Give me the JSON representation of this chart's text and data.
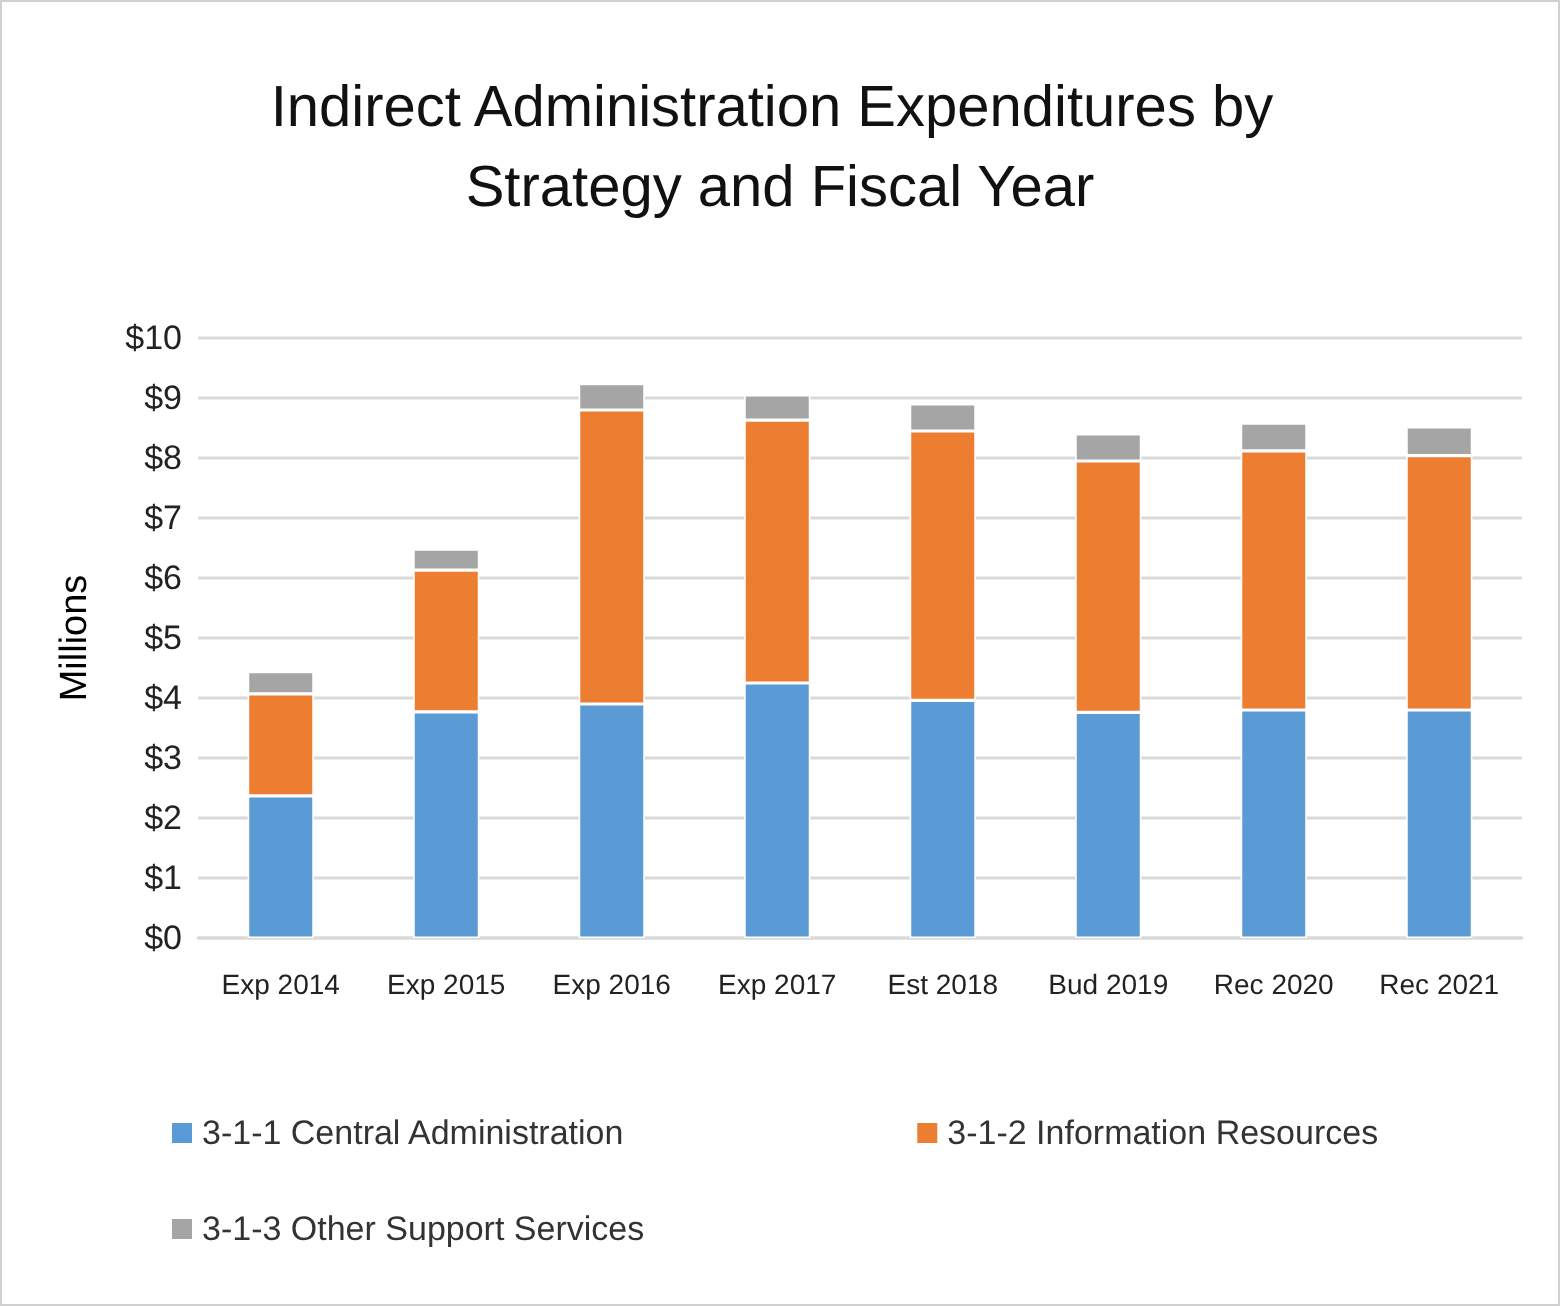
{
  "chart_data": {
    "type": "bar",
    "title": "Indirect Administration Expenditures by Strategy and Fiscal Year",
    "ylabel": "Millions",
    "categories": [
      "Exp 2014",
      "Exp 2015",
      "Exp 2016",
      "Exp 2017",
      "Est 2018",
      "Bud 2019",
      "Rec 2020",
      "Rec 2021"
    ],
    "series": [
      {
        "name": "3-1-1 Central Administration",
        "color": "#5b9bd5",
        "values": [
          2.37,
          3.77,
          3.9,
          4.25,
          3.96,
          3.76,
          3.8,
          3.8
        ]
      },
      {
        "name": "3-1-2 Information Resources",
        "color": "#ed7d31",
        "values": [
          1.7,
          2.36,
          4.9,
          4.38,
          4.49,
          4.19,
          4.32,
          4.24
        ]
      },
      {
        "name": "3-1-3 Other Support Services",
        "color": "#a5a5a5",
        "values": [
          0.37,
          0.35,
          0.44,
          0.42,
          0.45,
          0.45,
          0.46,
          0.48
        ]
      }
    ],
    "stacked": true,
    "ylim": [
      0,
      10
    ],
    "yticks": [
      {
        "value": 0,
        "label": "$0"
      },
      {
        "value": 1,
        "label": "$1"
      },
      {
        "value": 2,
        "label": "$2"
      },
      {
        "value": 3,
        "label": "$3"
      },
      {
        "value": 4,
        "label": "$4"
      },
      {
        "value": 5,
        "label": "$5"
      },
      {
        "value": 6,
        "label": "$6"
      },
      {
        "value": 7,
        "label": "$7"
      },
      {
        "value": 8,
        "label": "$8"
      },
      {
        "value": 9,
        "label": "$9"
      },
      {
        "value": 10,
        "label": "$10"
      }
    ],
    "grid": "y",
    "legend": "bottom"
  }
}
